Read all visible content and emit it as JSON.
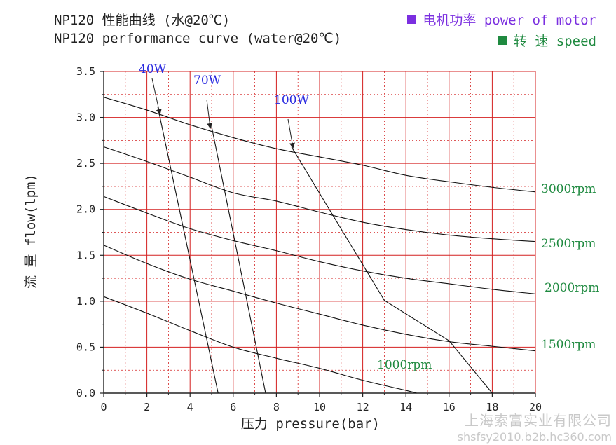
{
  "header": {
    "title_cn": "NP120 性能曲线 (水@20℃)",
    "title_en": "NP120 performance curve (water@20℃)"
  },
  "legend": {
    "power_label": "电机功率 power of motor",
    "power_color": "#7b2fe0",
    "speed_label": "转 速 speed",
    "speed_color": "#1f8a40"
  },
  "watermark": {
    "company": "上海索富实业有限公司",
    "url": "shsfsy2010.b2b.hc360.com"
  },
  "chart_data": {
    "type": "line",
    "xlabel": "压力 pressure(bar)",
    "ylabel": "流 量 flow(lpm)",
    "xlim": [
      0,
      20
    ],
    "ylim": [
      0,
      3.5
    ],
    "x_ticks": [
      "0",
      "2",
      "4",
      "6",
      "8",
      "10",
      "12",
      "14",
      "16",
      "18",
      "20"
    ],
    "y_ticks": [
      "0.0",
      "0.5",
      "1.0",
      "1.5",
      "2.0",
      "2.5",
      "3.0",
      "3.5"
    ],
    "grid": true,
    "grid_color": "#d42020",
    "speed_curves": [
      {
        "name": "3000rpm",
        "points": [
          [
            0,
            3.22
          ],
          [
            2,
            3.08
          ],
          [
            4,
            2.92
          ],
          [
            6,
            2.78
          ],
          [
            8,
            2.66
          ],
          [
            10,
            2.57
          ],
          [
            12,
            2.48
          ],
          [
            14,
            2.37
          ],
          [
            16,
            2.3
          ],
          [
            18,
            2.24
          ],
          [
            20,
            2.19
          ]
        ]
      },
      {
        "name": "2500rpm",
        "points": [
          [
            0,
            2.68
          ],
          [
            2,
            2.52
          ],
          [
            4,
            2.35
          ],
          [
            6,
            2.18
          ],
          [
            8,
            2.09
          ],
          [
            10,
            1.97
          ],
          [
            12,
            1.86
          ],
          [
            14,
            1.78
          ],
          [
            16,
            1.72
          ],
          [
            18,
            1.68
          ],
          [
            20,
            1.65
          ]
        ]
      },
      {
        "name": "2000rpm",
        "points": [
          [
            0,
            2.14
          ],
          [
            2,
            1.96
          ],
          [
            4,
            1.79
          ],
          [
            6,
            1.66
          ],
          [
            8,
            1.55
          ],
          [
            10,
            1.43
          ],
          [
            12,
            1.33
          ],
          [
            14,
            1.25
          ],
          [
            16,
            1.19
          ],
          [
            18,
            1.13
          ],
          [
            20,
            1.08
          ]
        ]
      },
      {
        "name": "1500rpm",
        "points": [
          [
            0,
            1.61
          ],
          [
            2,
            1.41
          ],
          [
            4,
            1.24
          ],
          [
            6,
            1.11
          ],
          [
            8,
            0.98
          ],
          [
            10,
            0.86
          ],
          [
            12,
            0.74
          ],
          [
            14,
            0.64
          ],
          [
            16,
            0.56
          ],
          [
            18,
            0.51
          ],
          [
            20,
            0.46
          ]
        ]
      },
      {
        "name": "1000rpm",
        "points": [
          [
            0,
            1.05
          ],
          [
            2,
            0.87
          ],
          [
            4,
            0.68
          ],
          [
            6,
            0.5
          ],
          [
            8,
            0.38
          ],
          [
            10,
            0.27
          ],
          [
            12,
            0.14
          ],
          [
            14,
            0.03
          ],
          [
            14.5,
            0.0
          ]
        ]
      }
    ],
    "power_curves": [
      {
        "name": "40W",
        "points": [
          [
            2.5,
            3.12
          ],
          [
            5.3,
            0.0
          ]
        ]
      },
      {
        "name": "70W",
        "points": [
          [
            5.0,
            2.9
          ],
          [
            7.5,
            0.0
          ]
        ]
      },
      {
        "name": "100W",
        "points": [
          [
            8.7,
            2.68
          ],
          [
            13.0,
            1.01
          ],
          [
            16.0,
            0.57
          ],
          [
            18.0,
            0.0
          ]
        ]
      }
    ],
    "speed_label_color": "#1f8a40",
    "power_label_color": "#2a2ae0"
  }
}
